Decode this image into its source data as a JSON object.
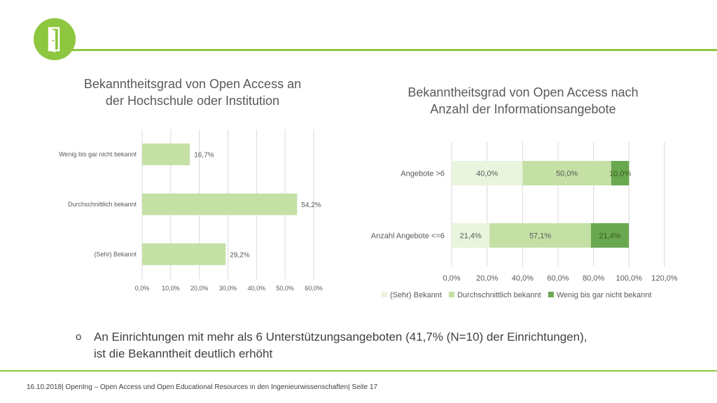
{
  "logo": {
    "icon": "door-icon",
    "color": "#8dc63f"
  },
  "bullet": {
    "marker": "o",
    "line1": "An Einrichtungen mit mehr als 6 Unterstützungsangeboten (41,7% (N=10) der Einrichtungen),",
    "line2": "ist die Bekanntheit deutlich erhöht"
  },
  "footer": {
    "text": "16.10.2018| OpenIng – Open Access und Open Educational Resources in den Ingenieurwissenschaften| Seite 17"
  },
  "chart_data": [
    {
      "type": "bar",
      "orientation": "horizontal",
      "title_lines": [
        "Bekanntheitsgrad von Open Access an",
        "der Hochschule oder Institution"
      ],
      "categories": [
        "Wenig bis gar nicht bekannt",
        "Durchschnittlich bekannt",
        "(Sehr) Bekannt"
      ],
      "values": [
        16.7,
        54.2,
        29.2
      ],
      "value_labels": [
        "16,7%",
        "54,2%",
        "29,2%"
      ],
      "xlim": [
        0,
        60
      ],
      "xticks": [
        0,
        10,
        20,
        30,
        40,
        50,
        60
      ],
      "xtick_labels": [
        "0,0%",
        "10,0%",
        "20,0%",
        "30,0%",
        "40,0%",
        "50,0%",
        "60,0%"
      ],
      "color": "#c5e0a5",
      "grid": true
    },
    {
      "type": "bar",
      "orientation": "horizontal",
      "stacked": true,
      "title_lines": [
        "Bekanntheitsgrad von Open Access nach",
        "Anzahl der Informationsangebote"
      ],
      "categories": [
        "Angebote >6",
        "Anzahl Angebote <=6"
      ],
      "series": [
        {
          "name": "(Sehr) Bekannt",
          "values": [
            40.0,
            21.4
          ],
          "labels": [
            "40,0%",
            "21,4%"
          ],
          "color": "#e9f5dd",
          "label_color": "#595959"
        },
        {
          "name": "Durchschnittlich bekannt",
          "values": [
            50.0,
            57.1
          ],
          "labels": [
            "50,0%",
            "57,1%"
          ],
          "color": "#c5e0a5",
          "label_color": "#595959"
        },
        {
          "name": "Wenig bis gar nicht bekannt",
          "values": [
            10.0,
            21.4
          ],
          "labels": [
            "10,0%",
            "21,4%"
          ],
          "color": "#6aa84f",
          "label_color": "#3a5a1f"
        }
      ],
      "xlim": [
        0,
        120
      ],
      "xticks": [
        0,
        20,
        40,
        60,
        80,
        100,
        120
      ],
      "xtick_labels": [
        "0,0%",
        "20,0%",
        "40,0%",
        "60,0%",
        "80,0%",
        "100,0%",
        "120,0%"
      ],
      "legend": "bottom",
      "grid": true
    }
  ]
}
